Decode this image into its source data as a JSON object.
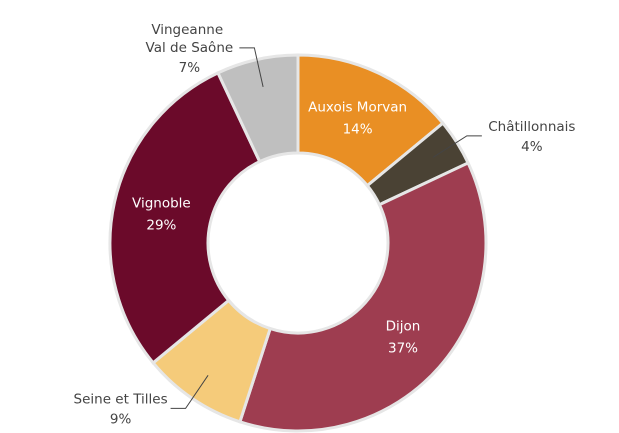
{
  "chart_data": {
    "type": "donut",
    "categories": [
      "Auxois Morvan",
      "Châtillonnais",
      "Dijon",
      "Seine et Tilles",
      "Vignoble",
      "Vingeanne Val de Saône"
    ],
    "values": [
      14,
      4,
      37,
      9,
      29,
      7
    ],
    "value_labels": [
      "14%",
      "4%",
      "37%",
      "9%",
      "29%",
      "7%"
    ],
    "colors": [
      "#E98F24",
      "#4A4234",
      "#9E3D50",
      "#F5CB7A",
      "#6B0A2A",
      "#BFBFBF"
    ]
  }
}
